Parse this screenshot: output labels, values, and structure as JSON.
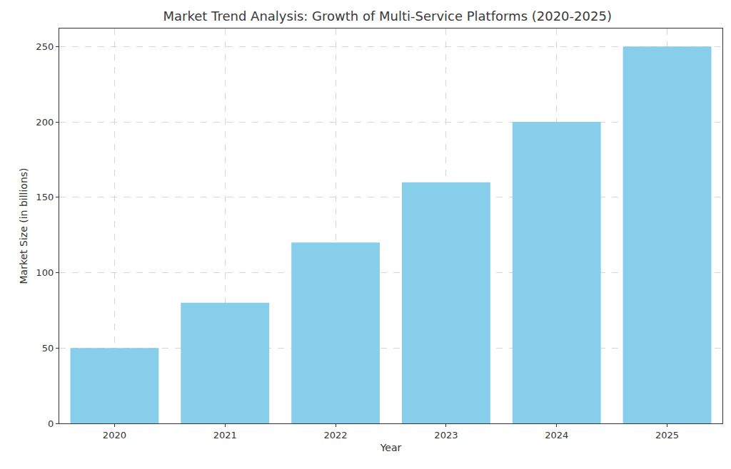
{
  "chart_data": {
    "type": "bar",
    "title": "Market Trend Analysis: Growth of Multi-Service Platforms (2020-2025)",
    "x_label": "Year",
    "y_label": "Market Size (in billions)",
    "categories": [
      "2020",
      "2021",
      "2022",
      "2023",
      "2024",
      "2025"
    ],
    "values": [
      50,
      80,
      120,
      160,
      200,
      250
    ],
    "color": "#87ceeb",
    "ylim": [
      0,
      262
    ],
    "yticks": [
      0,
      50,
      100,
      150,
      200,
      250
    ],
    "grid": true
  }
}
